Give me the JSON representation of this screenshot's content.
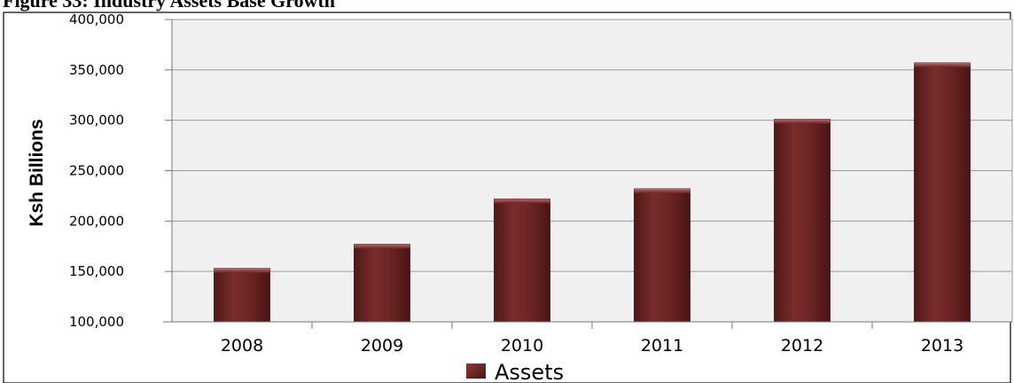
{
  "figure": {
    "title": "Figure 33: Industry Assets Base Growth"
  },
  "colors": {
    "bar": "#6b2424",
    "bar_highlight": "#9a4a4a",
    "bar_shadow": "#4a1414",
    "plot_bg": "#f0f0f0",
    "grid": "#9a9a9a"
  },
  "chart_data": {
    "type": "bar",
    "categories": [
      "2008",
      "2009",
      "2010",
      "2011",
      "2012",
      "2013"
    ],
    "series": [
      {
        "name": "Assets",
        "values": [
          153000,
          177000,
          222000,
          232000,
          301000,
          357000
        ]
      }
    ],
    "ylabel": "Ksh Billions",
    "xlabel": "",
    "ylim": [
      100000,
      400000
    ],
    "yticks": [
      "100,000",
      "150,000",
      "200,000",
      "250,000",
      "300,000",
      "350,000",
      "400,000"
    ],
    "ytick_values": [
      100000,
      150000,
      200000,
      250000,
      300000,
      350000,
      400000
    ],
    "grid": true,
    "legend": "bottom"
  }
}
